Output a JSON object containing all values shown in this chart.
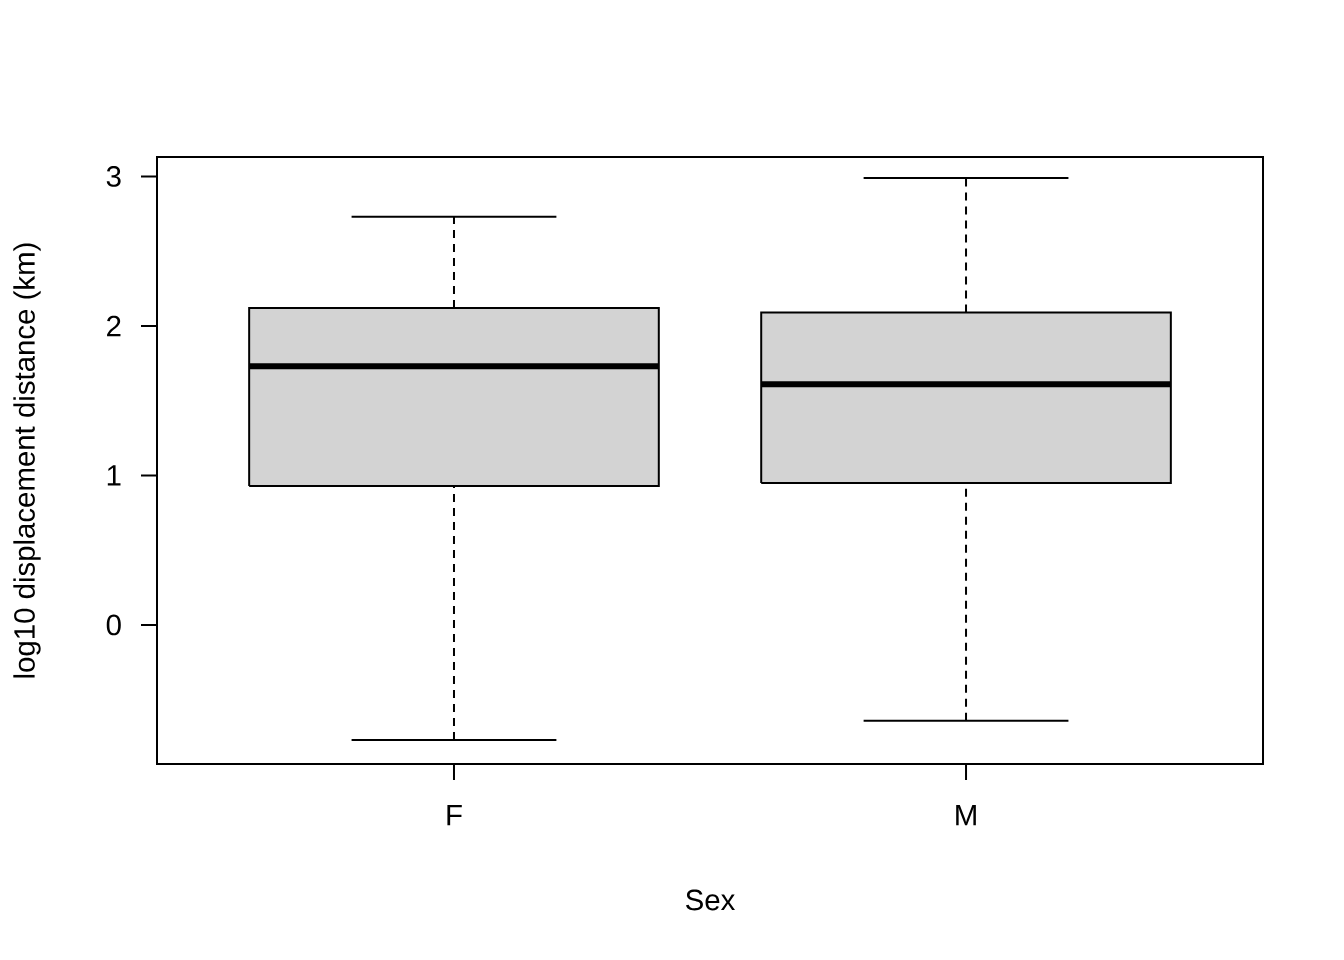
{
  "chart_data": {
    "type": "box",
    "xlabel": "Sex",
    "ylabel": "log10 displacement distance (km)",
    "categories": [
      "F",
      "M"
    ],
    "boxes": [
      {
        "low": -0.77,
        "q1": 0.93,
        "median": 1.73,
        "q3": 2.12,
        "high": 2.73
      },
      {
        "low": -0.64,
        "q1": 0.95,
        "median": 1.61,
        "q3": 2.09,
        "high": 2.99
      }
    ],
    "color": "#d3d3d3",
    "ylim": [
      -0.93,
      3.13
    ],
    "yticks": [
      0,
      1,
      2,
      3
    ]
  }
}
